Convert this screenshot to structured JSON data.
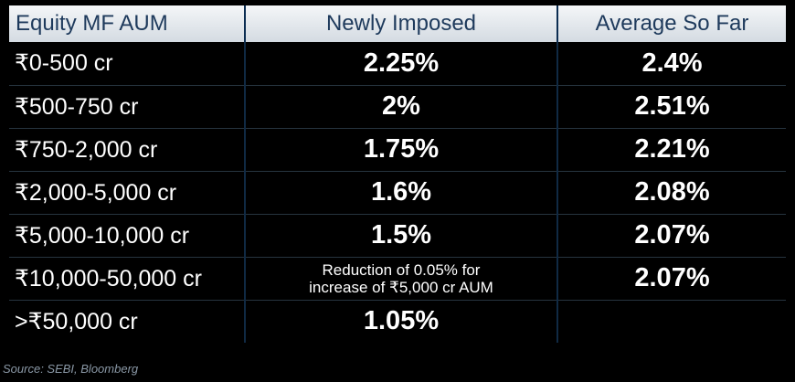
{
  "table": {
    "headers": [
      "Equity MF AUM",
      "Newly Imposed",
      "Average So Far"
    ],
    "rows": [
      {
        "tier": "₹0-500 cr",
        "newly": "2.25%",
        "avg": "2.4%"
      },
      {
        "tier": "₹500-750 cr",
        "newly": "2%",
        "avg": "2.51%"
      },
      {
        "tier": "₹750-2,000 cr",
        "newly": "1.75%",
        "avg": "2.21%"
      },
      {
        "tier": "₹2,000-5,000 cr",
        "newly": "1.6%",
        "avg": "2.08%"
      },
      {
        "tier": "₹5,000-10,000 cr",
        "newly": "1.5%",
        "avg": "2.07%"
      },
      {
        "tier": "₹10,000-50,000 cr",
        "newly": "Reduction of 0.05% for increase of ₹5,000 cr AUM",
        "avg": "2.07%"
      },
      {
        "tier": ">₹50,000 cr",
        "newly": "1.05%",
        "avg": ""
      }
    ]
  },
  "source": "Source: SEBI, Bloomberg"
}
